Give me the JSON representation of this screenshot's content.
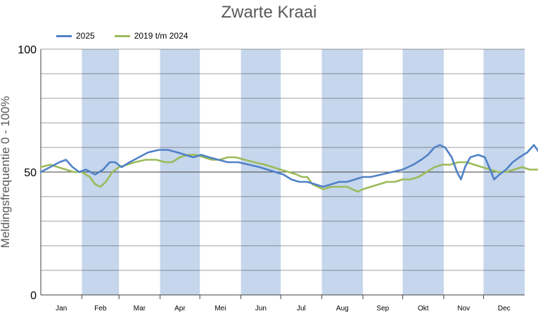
{
  "chart_data": {
    "type": "line",
    "title": "Zwarte Kraai",
    "ylabel": "Meldingsfrequentie 0 - 100%",
    "ylim": [
      0,
      100
    ],
    "yticks": [
      0,
      50,
      100
    ],
    "months": [
      "Jan",
      "Feb",
      "Mar",
      "Apr",
      "Mei",
      "Jun",
      "Jul",
      "Aug",
      "Sep",
      "Okt",
      "Nov",
      "Dec"
    ],
    "shaded_months": [
      "Feb",
      "Apr",
      "Jun",
      "Aug",
      "Okt",
      "Dec"
    ],
    "grid": true,
    "legend_position": "top-left",
    "series": [
      {
        "name": "2025",
        "color": "#4f81c6",
        "points": [
          [
            1,
            50
          ],
          [
            8,
            52
          ],
          [
            15,
            54
          ],
          [
            20,
            55
          ],
          [
            25,
            52
          ],
          [
            30,
            50
          ],
          [
            35,
            51
          ],
          [
            42,
            49
          ],
          [
            48,
            51
          ],
          [
            53,
            54
          ],
          [
            57,
            54
          ],
          [
            62,
            52
          ],
          [
            68,
            54
          ],
          [
            75,
            56
          ],
          [
            82,
            58
          ],
          [
            90,
            59
          ],
          [
            97,
            59
          ],
          [
            104,
            58
          ],
          [
            110,
            57
          ],
          [
            116,
            56
          ],
          [
            122,
            57
          ],
          [
            128,
            56
          ],
          [
            135,
            55
          ],
          [
            142,
            54
          ],
          [
            150,
            54
          ],
          [
            158,
            53
          ],
          [
            166,
            52
          ],
          [
            172,
            51
          ],
          [
            178,
            50
          ],
          [
            184,
            49
          ],
          [
            190,
            47
          ],
          [
            196,
            46
          ],
          [
            202,
            46
          ],
          [
            208,
            45
          ],
          [
            214,
            44
          ],
          [
            220,
            45
          ],
          [
            226,
            46
          ],
          [
            232,
            46
          ],
          [
            238,
            47
          ],
          [
            244,
            48
          ],
          [
            250,
            48
          ],
          [
            258,
            49
          ],
          [
            266,
            50
          ],
          [
            274,
            51
          ],
          [
            282,
            53
          ],
          [
            288,
            55
          ],
          [
            293,
            57
          ],
          [
            298,
            60
          ],
          [
            302,
            61
          ],
          [
            306,
            60
          ],
          [
            311,
            56
          ],
          [
            315,
            50
          ],
          [
            318,
            47
          ],
          [
            321,
            52
          ],
          [
            325,
            56
          ],
          [
            331,
            57
          ],
          [
            336,
            56
          ],
          [
            340,
            51
          ],
          [
            343,
            47
          ],
          [
            347,
            49
          ],
          [
            352,
            51
          ],
          [
            357,
            54
          ],
          [
            362,
            56
          ],
          [
            368,
            58
          ],
          [
            373,
            61
          ],
          [
            377,
            58
          ],
          [
            380,
            54
          ],
          [
            383,
            53
          ]
        ]
      },
      {
        "name": "2019 t/m 2024",
        "color": "#9bbb59",
        "points": [
          [
            1,
            52
          ],
          [
            8,
            53
          ],
          [
            14,
            52
          ],
          [
            20,
            51
          ],
          [
            26,
            50
          ],
          [
            32,
            50
          ],
          [
            38,
            48
          ],
          [
            42,
            45
          ],
          [
            46,
            44
          ],
          [
            50,
            46
          ],
          [
            55,
            50
          ],
          [
            60,
            52
          ],
          [
            66,
            53
          ],
          [
            72,
            54
          ],
          [
            80,
            55
          ],
          [
            88,
            55
          ],
          [
            95,
            54
          ],
          [
            100,
            54
          ],
          [
            106,
            56
          ],
          [
            112,
            57
          ],
          [
            118,
            57
          ],
          [
            124,
            56
          ],
          [
            130,
            55
          ],
          [
            136,
            55
          ],
          [
            142,
            56
          ],
          [
            148,
            56
          ],
          [
            155,
            55
          ],
          [
            162,
            54
          ],
          [
            170,
            53
          ],
          [
            176,
            52
          ],
          [
            182,
            51
          ],
          [
            188,
            50
          ],
          [
            194,
            49
          ],
          [
            198,
            48
          ],
          [
            202,
            48
          ],
          [
            206,
            45
          ],
          [
            210,
            44
          ],
          [
            214,
            43
          ],
          [
            220,
            44
          ],
          [
            226,
            44
          ],
          [
            232,
            44
          ],
          [
            236,
            43
          ],
          [
            240,
            42
          ],
          [
            244,
            43
          ],
          [
            250,
            44
          ],
          [
            256,
            45
          ],
          [
            262,
            46
          ],
          [
            268,
            46
          ],
          [
            274,
            47
          ],
          [
            280,
            47
          ],
          [
            286,
            48
          ],
          [
            292,
            50
          ],
          [
            298,
            52
          ],
          [
            304,
            53
          ],
          [
            310,
            53
          ],
          [
            316,
            54
          ],
          [
            322,
            54
          ],
          [
            328,
            53
          ],
          [
            334,
            52
          ],
          [
            340,
            51
          ],
          [
            346,
            50
          ],
          [
            352,
            50
          ],
          [
            358,
            51
          ],
          [
            364,
            52
          ],
          [
            370,
            51
          ],
          [
            376,
            51
          ],
          [
            380,
            50
          ],
          [
            385,
            49
          ],
          [
            392,
            53
          ],
          [
            396,
            54
          ]
        ]
      }
    ]
  }
}
